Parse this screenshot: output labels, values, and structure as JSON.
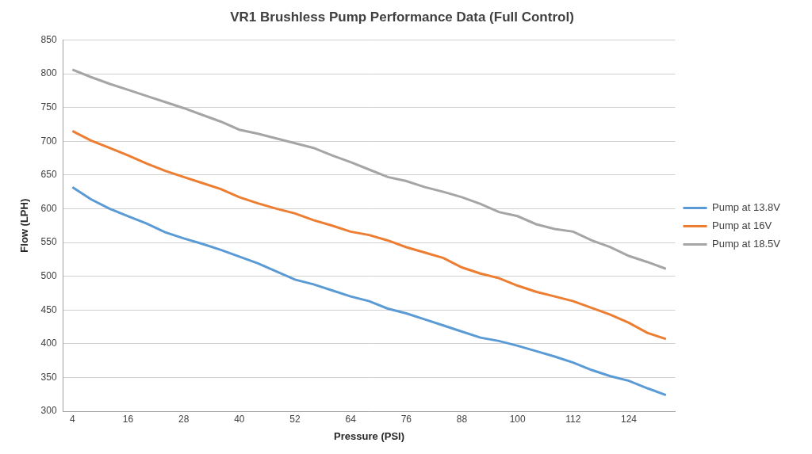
{
  "chart_data": {
    "type": "line",
    "title": "VR1 Brushless Pump Performance Data (Full Control)",
    "x_label": "Pressure (PSI)",
    "y_label": "Flow (LPH)",
    "x": [
      4,
      8,
      12,
      16,
      20,
      24,
      28,
      32,
      36,
      40,
      44,
      48,
      52,
      56,
      60,
      64,
      68,
      72,
      76,
      80,
      84,
      88,
      92,
      96,
      100,
      104,
      108,
      112,
      116,
      120,
      124,
      128,
      132
    ],
    "series": [
      {
        "name": "Pump at 13.8V",
        "color": "#5b9bd5",
        "values": [
          632,
          614,
          600,
          589,
          578,
          565,
          556,
          548,
          539,
          529,
          519,
          507,
          495,
          488,
          479,
          470,
          463,
          452,
          445,
          436,
          427,
          418,
          409,
          404,
          397,
          389,
          381,
          372,
          361,
          352,
          345,
          334,
          324
        ]
      },
      {
        "name": "Pump at 16V",
        "color": "#ed7d31",
        "values": [
          715,
          701,
          690,
          679,
          667,
          656,
          647,
          638,
          629,
          617,
          608,
          600,
          593,
          583,
          575,
          566,
          561,
          553,
          543,
          535,
          527,
          513,
          504,
          497,
          486,
          477,
          470,
          463,
          453,
          443,
          431,
          416,
          407
        ]
      },
      {
        "name": "Pump at 18.5V",
        "color": "#a5a5a5",
        "values": [
          806,
          795,
          785,
          776,
          767,
          758,
          749,
          739,
          729,
          717,
          711,
          704,
          697,
          690,
          679,
          669,
          658,
          647,
          641,
          632,
          625,
          617,
          607,
          595,
          589,
          577,
          570,
          566,
          553,
          543,
          530,
          521,
          511
        ]
      }
    ],
    "xlim": [
      2,
      134
    ],
    "xticks": [
      4,
      16,
      28,
      40,
      52,
      64,
      76,
      88,
      100,
      112,
      124
    ],
    "ylim": [
      300,
      850
    ],
    "yticks": [
      300,
      350,
      400,
      450,
      500,
      550,
      600,
      650,
      700,
      750,
      800,
      850
    ],
    "grid": "y",
    "legend": "right"
  }
}
